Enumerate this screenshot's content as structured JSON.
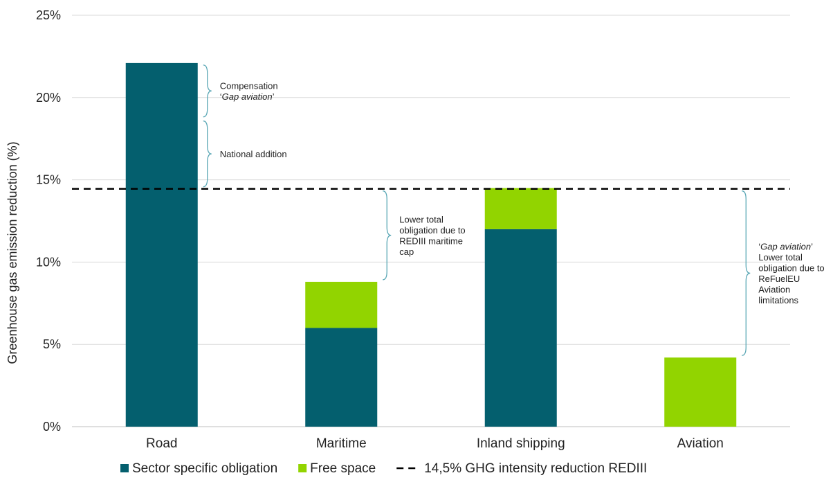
{
  "chart_data": {
    "type": "bar",
    "stacked": true,
    "categories": [
      "Road",
      "Maritime",
      "Inland shipping",
      "Aviation"
    ],
    "series": [
      {
        "name": "Sector specific obligation",
        "color": "#045f6e",
        "values": [
          22.1,
          6.0,
          12.0,
          0
        ]
      },
      {
        "name": "Free space",
        "color": "#92d400",
        "values": [
          0,
          2.8,
          2.5,
          4.2
        ]
      }
    ],
    "reference_line": {
      "name": "14,5% GHG intensity reduction REDIII",
      "value": 14.45,
      "style": "dashed",
      "color": "#000000"
    },
    "ylabel": "Greenhouse gas emission reduction (%)",
    "ylim": [
      0,
      25
    ],
    "yticks": [
      {
        "value": 0,
        "label": "0%"
      },
      {
        "value": 5,
        "label": "5%"
      },
      {
        "value": 10,
        "label": "10%"
      },
      {
        "value": 15,
        "label": "15%"
      },
      {
        "value": 20,
        "label": "20%"
      },
      {
        "value": 25,
        "label": "25%"
      }
    ],
    "grid": true,
    "legend_position": "bottom",
    "annotations": [
      {
        "category": "Road",
        "side": "right",
        "from": 18.7,
        "to": 22.1,
        "lines": [
          [
            {
              "t": "Compensation",
              "i": false
            }
          ],
          [
            {
              "t": "‘",
              "i": false
            },
            {
              "t": "Gap aviation",
              "i": true
            },
            {
              "t": "’",
              "i": false
            }
          ]
        ]
      },
      {
        "category": "Road",
        "side": "right",
        "from": 14.45,
        "to": 18.7,
        "lines": [
          [
            {
              "t": "National addition",
              "i": false
            }
          ]
        ]
      },
      {
        "category": "Maritime",
        "side": "right",
        "from": 8.8,
        "to": 14.45,
        "lines": [
          [
            {
              "t": "Lower total",
              "i": false
            }
          ],
          [
            {
              "t": "obligation due to",
              "i": false
            }
          ],
          [
            {
              "t": "REDIII maritime",
              "i": false
            }
          ],
          [
            {
              "t": "cap",
              "i": false
            }
          ]
        ]
      },
      {
        "category": "Aviation",
        "side": "right",
        "from": 4.2,
        "to": 14.45,
        "lines": [
          [
            {
              "t": "‘",
              "i": false
            },
            {
              "t": "Gap aviation",
              "i": true
            },
            {
              "t": "’",
              "i": false
            }
          ],
          [
            {
              "t": "Lower total",
              "i": false
            }
          ],
          [
            {
              "t": "obligation due to",
              "i": false
            }
          ],
          [
            {
              "t": "ReFuelEU",
              "i": false
            }
          ],
          [
            {
              "t": "Aviation",
              "i": false
            }
          ],
          [
            {
              "t": "limitations",
              "i": false
            }
          ]
        ]
      }
    ]
  }
}
